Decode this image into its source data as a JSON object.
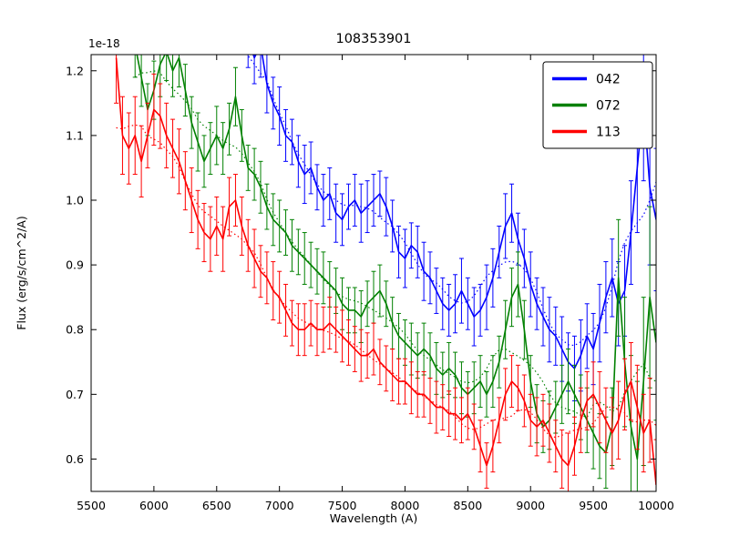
{
  "chart_data": {
    "type": "line",
    "title": "108353901",
    "xlabel": "Wavelength (A)",
    "ylabel": "Flux (erg/s/cm^2/A)",
    "offset_text": "1e-18",
    "xlim": [
      5500,
      10000
    ],
    "ylim": [
      0.55,
      1.225
    ],
    "xticks": [
      5500,
      6000,
      6500,
      7000,
      7500,
      8000,
      8500,
      9000,
      9500,
      10000
    ],
    "xticklabels": [
      "5500",
      "6000",
      "6500",
      "7000",
      "7500",
      "8000",
      "8500",
      "9000",
      "9500",
      "10000"
    ],
    "yticks": [
      0.6,
      0.7,
      0.8,
      0.9,
      1.0,
      1.1,
      1.2
    ],
    "yticklabels": [
      "0.6",
      "0.7",
      "0.8",
      "0.9",
      "1.0",
      "1.1",
      "1.2"
    ],
    "grid": false,
    "legend_position": "upper right",
    "series": [
      {
        "name": "042",
        "color": "#0000ff",
        "style": "solid line with error bars and dotted model curve",
        "x_start": 6700,
        "x_step": 50,
        "y": [
          1.3,
          1.25,
          1.22,
          1.24,
          1.18,
          1.15,
          1.13,
          1.1,
          1.09,
          1.06,
          1.04,
          1.05,
          1.02,
          1.0,
          1.01,
          0.98,
          0.97,
          0.99,
          1.0,
          0.98,
          0.99,
          1.0,
          1.01,
          0.99,
          0.96,
          0.92,
          0.91,
          0.93,
          0.92,
          0.89,
          0.88,
          0.86,
          0.84,
          0.83,
          0.84,
          0.86,
          0.84,
          0.82,
          0.83,
          0.85,
          0.88,
          0.92,
          0.96,
          0.98,
          0.94,
          0.91,
          0.87,
          0.84,
          0.82,
          0.8,
          0.79,
          0.77,
          0.75,
          0.74,
          0.76,
          0.79,
          0.77,
          0.81,
          0.85,
          0.88,
          0.84,
          0.86,
          0.95,
          1.05,
          1.15,
          1.02,
          0.97
        ],
        "yerr": [
          0.05,
          0.045,
          0.04,
          0.05,
          0.045,
          0.04,
          0.045,
          0.04,
          0.035,
          0.04,
          0.045,
          0.04,
          0.035,
          0.04,
          0.04,
          0.045,
          0.04,
          0.035,
          0.04,
          0.045,
          0.04,
          0.04,
          0.035,
          0.045,
          0.04,
          0.04,
          0.045,
          0.035,
          0.04,
          0.045,
          0.04,
          0.035,
          0.04,
          0.04,
          0.045,
          0.05,
          0.04,
          0.045,
          0.04,
          0.05,
          0.045,
          0.04,
          0.05,
          0.045,
          0.04,
          0.045,
          0.05,
          0.04,
          0.045,
          0.05,
          0.045,
          0.05,
          0.045,
          0.05,
          0.055,
          0.05,
          0.055,
          0.06,
          0.055,
          0.06,
          0.065,
          0.07,
          0.08,
          0.1,
          0.12,
          0.12,
          0.11
        ]
      },
      {
        "name": "072",
        "color": "#008000",
        "style": "solid line with error bars and dotted model curve",
        "x_start": 5850,
        "x_step": 50,
        "y": [
          1.24,
          1.19,
          1.14,
          1.17,
          1.21,
          1.23,
          1.2,
          1.22,
          1.17,
          1.12,
          1.09,
          1.06,
          1.08,
          1.1,
          1.08,
          1.11,
          1.16,
          1.1,
          1.05,
          1.04,
          1.02,
          0.99,
          0.97,
          0.96,
          0.95,
          0.93,
          0.92,
          0.91,
          0.9,
          0.89,
          0.88,
          0.87,
          0.86,
          0.84,
          0.83,
          0.83,
          0.82,
          0.84,
          0.85,
          0.86,
          0.84,
          0.81,
          0.79,
          0.78,
          0.77,
          0.76,
          0.77,
          0.76,
          0.74,
          0.73,
          0.74,
          0.73,
          0.71,
          0.7,
          0.71,
          0.72,
          0.7,
          0.72,
          0.75,
          0.8,
          0.85,
          0.87,
          0.8,
          0.72,
          0.67,
          0.65,
          0.66,
          0.68,
          0.7,
          0.72,
          0.7,
          0.68,
          0.66,
          0.64,
          0.62,
          0.61,
          0.65,
          0.88,
          0.75,
          0.65,
          0.6,
          0.72,
          0.85,
          0.78
        ],
        "yerr": [
          0.05,
          0.045,
          0.04,
          0.045,
          0.05,
          0.045,
          0.04,
          0.045,
          0.04,
          0.04,
          0.045,
          0.04,
          0.04,
          0.045,
          0.04,
          0.04,
          0.045,
          0.04,
          0.035,
          0.04,
          0.04,
          0.035,
          0.04,
          0.04,
          0.035,
          0.04,
          0.035,
          0.04,
          0.035,
          0.035,
          0.04,
          0.035,
          0.035,
          0.04,
          0.035,
          0.035,
          0.04,
          0.035,
          0.04,
          0.04,
          0.035,
          0.04,
          0.035,
          0.035,
          0.04,
          0.035,
          0.04,
          0.035,
          0.04,
          0.035,
          0.04,
          0.035,
          0.04,
          0.035,
          0.04,
          0.04,
          0.035,
          0.04,
          0.04,
          0.045,
          0.045,
          0.05,
          0.045,
          0.04,
          0.045,
          0.04,
          0.045,
          0.04,
          0.045,
          0.05,
          0.045,
          0.05,
          0.05,
          0.055,
          0.05,
          0.055,
          0.06,
          0.09,
          0.1,
          0.11,
          0.12,
          0.13,
          0.14,
          0.12
        ]
      },
      {
        "name": "113",
        "color": "#ff0000",
        "style": "solid line with error bars and dotted model curve",
        "x_start": 5700,
        "x_step": 50,
        "y": [
          1.22,
          1.1,
          1.08,
          1.1,
          1.06,
          1.1,
          1.14,
          1.13,
          1.1,
          1.08,
          1.06,
          1.03,
          1.0,
          0.97,
          0.95,
          0.94,
          0.96,
          0.94,
          0.99,
          1.0,
          0.96,
          0.93,
          0.91,
          0.89,
          0.88,
          0.86,
          0.85,
          0.83,
          0.81,
          0.8,
          0.8,
          0.81,
          0.8,
          0.8,
          0.81,
          0.8,
          0.79,
          0.78,
          0.77,
          0.76,
          0.76,
          0.77,
          0.75,
          0.74,
          0.73,
          0.72,
          0.72,
          0.71,
          0.7,
          0.7,
          0.69,
          0.68,
          0.68,
          0.67,
          0.67,
          0.66,
          0.67,
          0.65,
          0.62,
          0.59,
          0.62,
          0.66,
          0.7,
          0.72,
          0.71,
          0.69,
          0.66,
          0.65,
          0.66,
          0.64,
          0.62,
          0.6,
          0.59,
          0.62,
          0.66,
          0.69,
          0.7,
          0.68,
          0.66,
          0.64,
          0.66,
          0.7,
          0.72,
          0.68,
          0.64,
          0.66,
          0.56
        ],
        "yerr": [
          0.07,
          0.06,
          0.055,
          0.06,
          0.055,
          0.05,
          0.055,
          0.05,
          0.05,
          0.045,
          0.05,
          0.045,
          0.05,
          0.045,
          0.045,
          0.05,
          0.045,
          0.05,
          0.045,
          0.04,
          0.045,
          0.04,
          0.045,
          0.04,
          0.04,
          0.045,
          0.04,
          0.04,
          0.035,
          0.04,
          0.04,
          0.035,
          0.04,
          0.035,
          0.04,
          0.035,
          0.04,
          0.035,
          0.035,
          0.04,
          0.035,
          0.04,
          0.035,
          0.035,
          0.04,
          0.035,
          0.035,
          0.04,
          0.035,
          0.035,
          0.035,
          0.04,
          0.035,
          0.035,
          0.04,
          0.035,
          0.04,
          0.035,
          0.04,
          0.035,
          0.04,
          0.035,
          0.04,
          0.04,
          0.035,
          0.04,
          0.04,
          0.045,
          0.04,
          0.045,
          0.04,
          0.045,
          0.05,
          0.045,
          0.05,
          0.045,
          0.05,
          0.055,
          0.05,
          0.055,
          0.06,
          0.055,
          0.06,
          0.065,
          0.06,
          0.065,
          0.07
        ]
      }
    ]
  }
}
